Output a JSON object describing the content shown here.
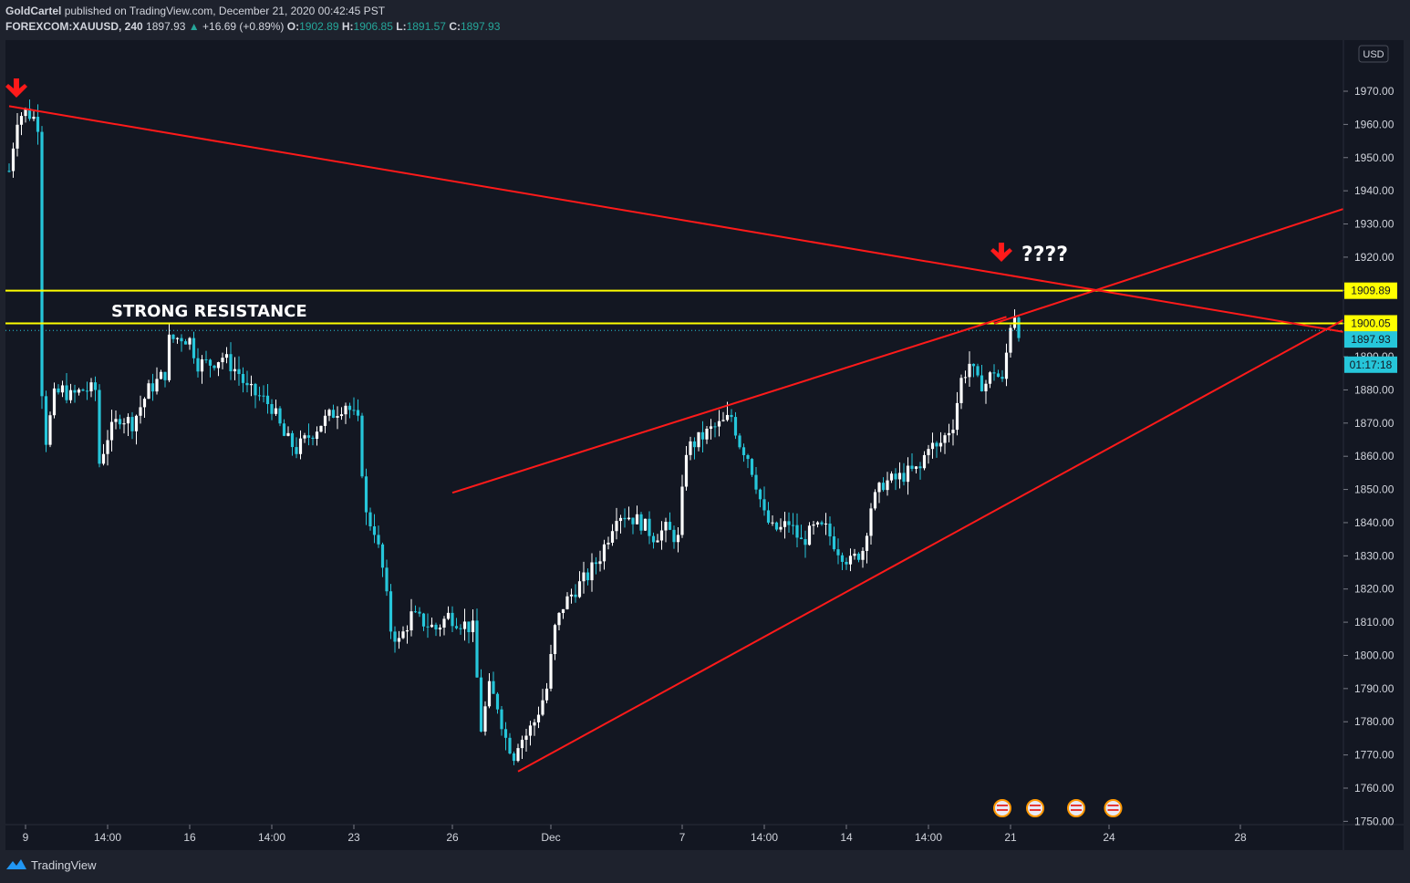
{
  "header": {
    "publisher": "GoldCartel",
    "published_text": "published on TradingView.com, December 21, 2020 00:42:45 PST",
    "symbol": "FOREXCOM:XAUUSD, 240",
    "last": "1897.93",
    "change": "+16.69 (+0.89%)",
    "open_label": "O:",
    "open": "1902.89",
    "high_label": "H:",
    "high": "1906.85",
    "low_label": "L:",
    "low": "1891.57",
    "close_label": "C:",
    "close": "1897.93"
  },
  "currency_badge": "USD",
  "annotations": {
    "resistance_label": "STRONG RESISTANCE",
    "question_label": "????"
  },
  "price_tags": {
    "upper_level": "1909.89",
    "lower_level": "1900.05",
    "last_price": "1897.93",
    "countdown": "01:17:18"
  },
  "footer": {
    "brand": "TradingView"
  },
  "colors": {
    "background": "#131722",
    "up": "#ffffff",
    "down": "#26c6da",
    "trendline": "#ff1a1a",
    "level": "#ffff00",
    "axis_text": "#d1d4dc"
  },
  "chart_data": {
    "type": "candlestick",
    "ylim": [
      1750,
      1980
    ],
    "y_ticks": [
      1750,
      1760,
      1770,
      1780,
      1790,
      1800,
      1810,
      1820,
      1830,
      1840,
      1850,
      1860,
      1870,
      1880,
      1890,
      1900,
      1910,
      1920,
      1930,
      1940,
      1950,
      1960,
      1970
    ],
    "x_tick_labels": [
      "9",
      "14:00",
      "16",
      "14:00",
      "23",
      "26",
      "Dec",
      "7",
      "14:00",
      "14",
      "14:00",
      "21",
      "24",
      "28"
    ],
    "x_tick_index": [
      4,
      24,
      44,
      64,
      84,
      108,
      132,
      164,
      184,
      204,
      224,
      244,
      268,
      300
    ],
    "bars_count": 325,
    "horizontal_levels": [
      1909.89,
      1900.05
    ],
    "trendlines": [
      {
        "name": "descending",
        "from_bar": 0,
        "from_price": 1965.5,
        "to_bar": 325,
        "to_price": 1897.5
      },
      {
        "name": "rising-resistance",
        "from_bar": 108,
        "from_price": 1849,
        "to_bar": 243,
        "to_price": 1902
      },
      {
        "name": "rising-support",
        "from_bar": 124,
        "from_price": 1765,
        "to_bar": 325,
        "to_price": 1901
      },
      {
        "name": "steep-rising",
        "from_bar": 240,
        "from_price": 1900,
        "to_bar": 325,
        "to_price": 1934.5
      }
    ],
    "price_path": [
      [
        0,
        1946
      ],
      [
        2,
        1962
      ],
      [
        4,
        1964
      ],
      [
        6,
        1962
      ],
      [
        7,
        1960
      ],
      [
        8,
        1880
      ],
      [
        9,
        1865
      ],
      [
        11,
        1878
      ],
      [
        13,
        1880
      ],
      [
        15,
        1878
      ],
      [
        18,
        1880
      ],
      [
        21,
        1880
      ],
      [
        22,
        1858
      ],
      [
        24,
        1866
      ],
      [
        27,
        1872
      ],
      [
        30,
        1870
      ],
      [
        34,
        1880
      ],
      [
        38,
        1885
      ],
      [
        39,
        1895
      ],
      [
        42,
        1896
      ],
      [
        44,
        1895
      ],
      [
        46,
        1888
      ],
      [
        49,
        1888
      ],
      [
        52,
        1890
      ],
      [
        56,
        1885
      ],
      [
        58,
        1880
      ],
      [
        61,
        1878
      ],
      [
        64,
        1875
      ],
      [
        67,
        1866
      ],
      [
        70,
        1862
      ],
      [
        73,
        1866
      ],
      [
        76,
        1870
      ],
      [
        79,
        1873
      ],
      [
        82,
        1876
      ],
      [
        85,
        1870
      ],
      [
        87,
        1842
      ],
      [
        89,
        1838
      ],
      [
        91,
        1826
      ],
      [
        93,
        1808
      ],
      [
        95,
        1804
      ],
      [
        98,
        1812
      ],
      [
        101,
        1810
      ],
      [
        104,
        1808
      ],
      [
        107,
        1812
      ],
      [
        110,
        1810
      ],
      [
        113,
        1808
      ],
      [
        115,
        1778
      ],
      [
        117,
        1790
      ],
      [
        119,
        1785
      ],
      [
        121,
        1775
      ],
      [
        123,
        1770
      ],
      [
        124,
        1774
      ],
      [
        126,
        1776
      ],
      [
        128,
        1780
      ],
      [
        131,
        1790
      ],
      [
        133,
        1808
      ],
      [
        135,
        1815
      ],
      [
        138,
        1820
      ],
      [
        141,
        1824
      ],
      [
        144,
        1830
      ],
      [
        146,
        1836
      ],
      [
        148,
        1843
      ],
      [
        151,
        1842
      ],
      [
        154,
        1840
      ],
      [
        157,
        1836
      ],
      [
        160,
        1838
      ],
      [
        163,
        1835
      ],
      [
        165,
        1862
      ],
      [
        168,
        1865
      ],
      [
        171,
        1868
      ],
      [
        174,
        1870
      ],
      [
        176,
        1872
      ],
      [
        178,
        1864
      ],
      [
        180,
        1860
      ],
      [
        182,
        1852
      ],
      [
        184,
        1842
      ],
      [
        186,
        1838
      ],
      [
        188,
        1838
      ],
      [
        190,
        1840
      ],
      [
        193,
        1834
      ],
      [
        196,
        1838
      ],
      [
        199,
        1838
      ],
      [
        202,
        1832
      ],
      [
        205,
        1828
      ],
      [
        208,
        1832
      ],
      [
        210,
        1845
      ],
      [
        213,
        1852
      ],
      [
        216,
        1853
      ],
      [
        219,
        1855
      ],
      [
        222,
        1856
      ],
      [
        224,
        1864
      ],
      [
        226,
        1862
      ],
      [
        228,
        1866
      ],
      [
        230,
        1870
      ],
      [
        232,
        1883
      ],
      [
        234,
        1888
      ],
      [
        236,
        1882
      ],
      [
        238,
        1882
      ],
      [
        240,
        1886
      ],
      [
        242,
        1882
      ],
      [
        244,
        1900
      ],
      [
        245,
        1903
      ],
      [
        246,
        1898
      ]
    ]
  }
}
